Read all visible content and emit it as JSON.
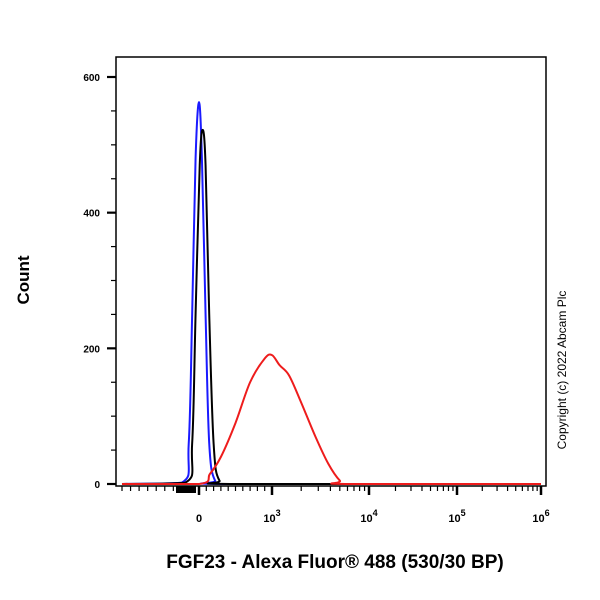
{
  "chart_data": {
    "type": "line",
    "title": "",
    "xlabel": "FGF23 - Alexa Fluor® 488 (530/30 BP)",
    "ylabel": "Count",
    "x_scale": "biexponential",
    "x_ticks": [
      {
        "label": "0",
        "value": 0
      },
      {
        "label": "10^3",
        "value": 1000
      },
      {
        "label": "10^4",
        "value": 10000
      },
      {
        "label": "10^5",
        "value": 100000
      },
      {
        "label": "10^6",
        "value": 1000000
      }
    ],
    "y_ticks": [
      0,
      200,
      400,
      600
    ],
    "ylim": [
      0,
      630
    ],
    "grid": false,
    "legend": null,
    "annotation": "Copyright (c) 2022 Abcam Plc",
    "series": [
      {
        "name": "blue-histogram",
        "color": "#1a1aff",
        "points": [
          [
            -900,
            0
          ],
          [
            -200,
            2
          ],
          [
            -120,
            60
          ],
          [
            -80,
            250
          ],
          [
            -40,
            480
          ],
          [
            0,
            563
          ],
          [
            40,
            480
          ],
          [
            90,
            250
          ],
          [
            140,
            60
          ],
          [
            220,
            5
          ],
          [
            400,
            0
          ],
          [
            1000000,
            0
          ]
        ]
      },
      {
        "name": "black-histogram",
        "color": "#000000",
        "points": [
          [
            -900,
            0
          ],
          [
            -160,
            2
          ],
          [
            -80,
            60
          ],
          [
            -40,
            250
          ],
          [
            10,
            470
          ],
          [
            50,
            522
          ],
          [
            90,
            470
          ],
          [
            140,
            250
          ],
          [
            200,
            60
          ],
          [
            280,
            5
          ],
          [
            500,
            0
          ],
          [
            1000000,
            0
          ]
        ]
      },
      {
        "name": "red-histogram",
        "color": "#ee1c1c",
        "points": [
          [
            -900,
            0
          ],
          [
            0,
            0
          ],
          [
            150,
            15
          ],
          [
            300,
            40
          ],
          [
            500,
            90
          ],
          [
            700,
            150
          ],
          [
            900,
            185
          ],
          [
            1000,
            190
          ],
          [
            1200,
            175
          ],
          [
            1500,
            160
          ],
          [
            2000,
            120
          ],
          [
            2800,
            70
          ],
          [
            3800,
            30
          ],
          [
            5000,
            5
          ],
          [
            6000,
            0
          ],
          [
            1000000,
            0
          ]
        ]
      }
    ]
  }
}
